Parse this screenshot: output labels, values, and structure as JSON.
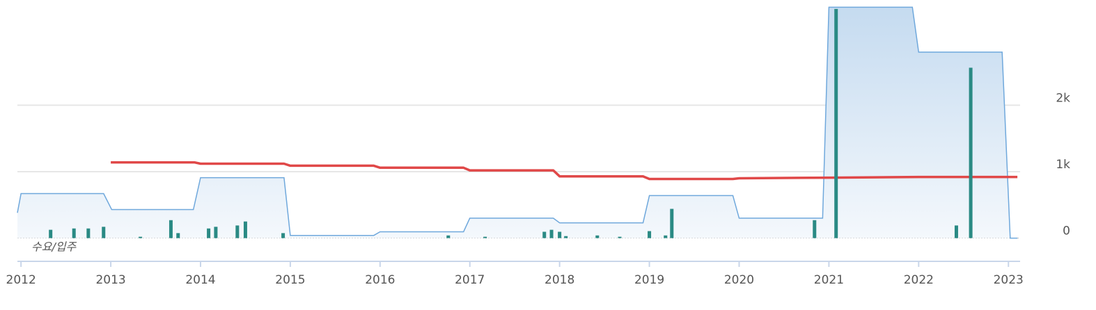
{
  "chart_data": {
    "type": "combo",
    "annotation": "수요/입주",
    "xlim": [
      2011.96,
      2023.13
    ],
    "xticks": [
      2012,
      2013,
      2014,
      2015,
      2016,
      2017,
      2018,
      2019,
      2020,
      2021,
      2022,
      2023
    ],
    "ylim": [
      -350,
      3480
    ],
    "yticks": [
      0,
      {
        "value": 1000,
        "label": "1k"
      },
      {
        "value": 2000,
        "label": "2k"
      }
    ],
    "grid": true,
    "series": [
      {
        "type": "area",
        "color": "#6fa8dc",
        "x": [
          2011.96,
          2012.0,
          2012.92,
          2013.01,
          2013.92,
          2014.0,
          2014.93,
          2015.0,
          2015.93,
          2016.0,
          2016.93,
          2017.0,
          2017.93,
          2018.0,
          2018.93,
          2019.0,
          2019.93,
          2020.0,
          2020.93,
          2021.0,
          2021.93,
          2022.0,
          2022.93,
          2023.02,
          2023.1
        ],
        "values": [
          380,
          670,
          670,
          430,
          430,
          910,
          910,
          40,
          40,
          95,
          95,
          300,
          300,
          230,
          230,
          640,
          640,
          300,
          300,
          3476,
          3476,
          2800,
          2800,
          0,
          0
        ]
      },
      {
        "type": "line",
        "color": "#e04848",
        "x": [
          2013.0,
          2013.93,
          2014.0,
          2014.93,
          2015.0,
          2015.93,
          2016.0,
          2016.93,
          2017.0,
          2017.93,
          2018.0,
          2018.93,
          2019.0,
          2019.93,
          2020.0,
          2021.0,
          2022.0,
          2023.1
        ],
        "values": [
          1140,
          1140,
          1120,
          1120,
          1090,
          1090,
          1060,
          1060,
          1020,
          1020,
          930,
          930,
          890,
          890,
          900,
          910,
          920,
          920
        ]
      },
      {
        "type": "bar",
        "color": "#2a8a84",
        "x": [
          2012.33,
          2012.59,
          2012.75,
          2012.92,
          2013.33,
          2013.67,
          2013.75,
          2014.09,
          2014.17,
          2014.41,
          2014.5,
          2014.92,
          2016.76,
          2017.17,
          2017.83,
          2017.91,
          2018.0,
          2018.07,
          2018.42,
          2018.67,
          2019.0,
          2019.18,
          2019.25,
          2020.84,
          2021.08,
          2022.42,
          2022.58
        ],
        "values": [
          125,
          145,
          145,
          170,
          20,
          270,
          75,
          145,
          170,
          190,
          250,
          75,
          40,
          20,
          95,
          125,
          95,
          30,
          40,
          20,
          105,
          40,
          440,
          270,
          3450,
          190,
          2565
        ]
      }
    ]
  }
}
